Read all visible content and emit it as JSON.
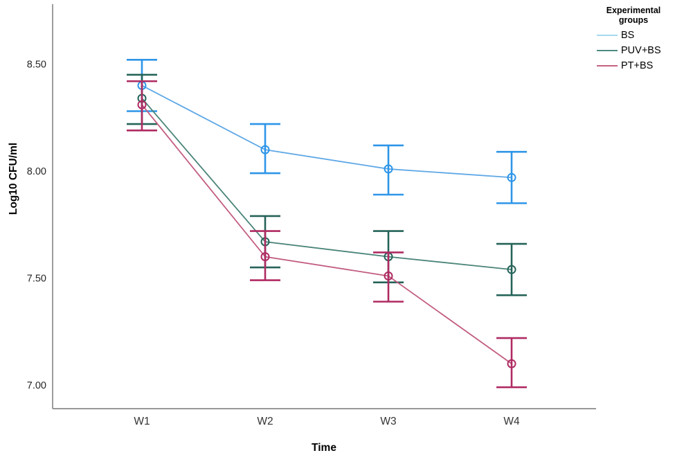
{
  "chart_data": {
    "type": "line",
    "title": "",
    "xlabel": "Time",
    "ylabel": "Log10 CFU/ml",
    "categories": [
      "W1",
      "W2",
      "W3",
      "W4"
    ],
    "yticks": [
      8.5,
      8.0,
      7.5,
      7.0
    ],
    "ytick_labels": [
      "8.50",
      "8.00",
      "7.50",
      "7.00"
    ],
    "ylim": [
      6.89,
      8.78
    ],
    "grid": false,
    "legend_title": "Experimental groups",
    "legend_position": "outside-top-right",
    "axis_color": "#8a8a8a",
    "series": [
      {
        "name": "BS",
        "values": [
          8.4,
          8.1,
          8.01,
          7.97
        ],
        "err_low": [
          8.28,
          7.99,
          7.89,
          7.85
        ],
        "err_high": [
          8.52,
          8.22,
          8.12,
          8.09
        ],
        "line_color": "#5FA8E6",
        "error_color": "#2D95E8",
        "legend_color": "#A6D8EF"
      },
      {
        "name": "PUV+BS",
        "values": [
          8.34,
          7.67,
          7.6,
          7.54
        ],
        "err_low": [
          8.22,
          7.55,
          7.48,
          7.42
        ],
        "err_high": [
          8.45,
          7.79,
          7.72,
          7.66
        ],
        "line_color": "#4A8478",
        "error_color": "#256359",
        "legend_color": "#4E8A80"
      },
      {
        "name": "PT+BS",
        "values": [
          8.31,
          7.6,
          7.51,
          7.1
        ],
        "err_low": [
          8.19,
          7.49,
          7.39,
          6.99
        ],
        "err_high": [
          8.42,
          7.72,
          7.62,
          7.22
        ],
        "line_color": "#C25B81",
        "error_color": "#AF2A62",
        "legend_color": "#C4617F"
      }
    ]
  }
}
